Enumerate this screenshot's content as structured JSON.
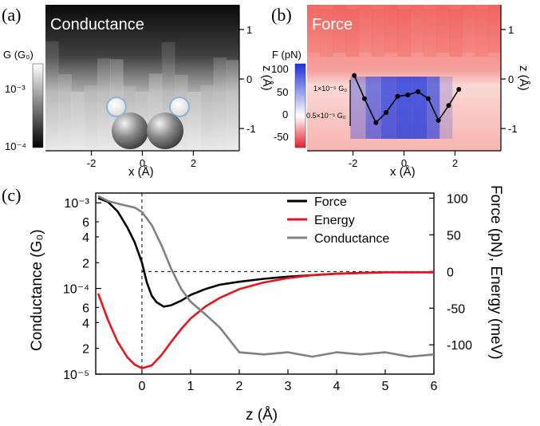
{
  "figure": {
    "panels": [
      {
        "letter": "(a)",
        "title": "Conductance",
        "colorbar_label": "G (G₀)",
        "colorbar_ticks": [
          "10⁻³",
          "10⁻⁴"
        ]
      },
      {
        "letter": "(b)",
        "title": "Force",
        "colorbar_label": "F (pN)",
        "colorbar_ticks": [
          "100",
          "50",
          "0",
          "-50"
        ],
        "inset_labels": [
          "1×10⁻⁵ G₀",
          "0.5×10⁻⁵ G₀"
        ]
      },
      {
        "letter": "(c)"
      }
    ]
  },
  "chart_data": [
    {
      "type": "heatmap",
      "panel": "a",
      "title": "Conductance",
      "xlabel": "x (Å)",
      "ylabel": "z (Å)",
      "xlim": [
        -3.8,
        3.8
      ],
      "ylim": [
        -1.45,
        1.5
      ],
      "x_ticks": [
        "-2",
        "0",
        "2"
      ],
      "y_ticks": [
        "1",
        "0",
        "-1"
      ],
      "colorbar": {
        "label": "G (G₀)",
        "scale": "log",
        "range": [
          0.0001,
          0.0015
        ],
        "colors": [
          "#000000",
          "#ffffff"
        ]
      }
    },
    {
      "type": "heatmap",
      "panel": "b",
      "title": "Force",
      "xlabel": "x (Å)",
      "ylabel": "z (Å)",
      "xlim": [
        -3.8,
        3.8
      ],
      "ylim": [
        -1.45,
        1.5
      ],
      "x_ticks": [
        "-2",
        "0",
        "2"
      ],
      "y_ticks": [
        "1",
        "0",
        "-1"
      ],
      "colorbar": {
        "label": "F (pN)",
        "range": [
          -70,
          115
        ],
        "colors": [
          "#e8202a",
          "#ffffff",
          "#1f2fd9"
        ]
      },
      "inset_line": {
        "x": [
          -1.95,
          -1.55,
          -1.1,
          -0.7,
          -0.25,
          0.15,
          0.55,
          0.95,
          1.35,
          1.75,
          2.15
        ],
        "y": [
          1.3,
          0.8,
          0.28,
          0.5,
          0.85,
          0.88,
          0.95,
          0.8,
          0.33,
          0.65,
          1.0
        ]
      }
    },
    {
      "type": "line",
      "panel": "c",
      "xlabel": "z (Å)",
      "ylabel_left": "Conductance (G₀)",
      "ylabel_right": "Force (pN), Energy (meV)",
      "xlim": [
        -0.95,
        6.0
      ],
      "ylim_left": [
        1e-05,
        0.0013
      ],
      "ylim_right": [
        -140,
        107
      ],
      "left_scale": "log",
      "x_ticks": [
        "0",
        "1",
        "2",
        "3",
        "4",
        "5",
        "6"
      ],
      "left_ticks": [
        "10⁻³",
        "6",
        "4",
        "2",
        "10⁻⁴",
        "6",
        "4",
        "2",
        "10⁻⁵"
      ],
      "right_ticks": [
        "100",
        "50",
        "0",
        "-50",
        "-100"
      ],
      "legend_position": "top-right",
      "series": [
        {
          "name": "Force",
          "color": "#000000",
          "axis": "right",
          "x": [
            -0.9,
            -0.7,
            -0.5,
            -0.3,
            -0.15,
            0,
            0.1,
            0.2,
            0.3,
            0.45,
            0.6,
            0.8,
            1.0,
            1.3,
            1.6,
            2.0,
            2.5,
            3.0,
            3.5,
            4.0,
            4.5,
            5.0,
            5.5,
            6.0
          ],
          "y": [
            100,
            95,
            82,
            60,
            40,
            12,
            -15,
            -33,
            -42,
            -48,
            -46,
            -40,
            -32,
            -24,
            -18,
            -14,
            -10,
            -7,
            -5,
            -3,
            -2,
            -1,
            -1,
            -1
          ]
        },
        {
          "name": "Energy",
          "color": "#e8141c",
          "axis": "right",
          "x": [
            -0.9,
            -0.7,
            -0.5,
            -0.3,
            -0.15,
            0,
            0.2,
            0.4,
            0.6,
            0.8,
            1.0,
            1.3,
            1.6,
            2.0,
            2.5,
            3.0,
            3.5,
            4.0,
            4.5,
            5.0,
            5.5,
            6.0
          ],
          "y": [
            -30,
            -66,
            -96,
            -117,
            -127,
            -132,
            -128,
            -114,
            -96,
            -79,
            -64,
            -48,
            -36,
            -24,
            -15,
            -9,
            -5,
            -3,
            -2,
            -1,
            -1,
            -1
          ]
        },
        {
          "name": "Conductance",
          "color": "#808080",
          "axis": "left",
          "x": [
            -0.9,
            -0.7,
            -0.5,
            -0.3,
            -0.15,
            0,
            0.2,
            0.4,
            0.6,
            0.8,
            1.0,
            1.3,
            1.6,
            2.0,
            2.5,
            3.0,
            3.5,
            4.0,
            4.5,
            5.0,
            5.5,
            6.0
          ],
          "y": [
            0.0012,
            0.00105,
            0.00098,
            0.00092,
            0.00088,
            0.00078,
            0.00055,
            0.00032,
            0.00017,
            0.0001,
            7e-05,
            5e-05,
            3.5e-05,
            1.8e-05,
            1.7e-05,
            1.8e-05,
            1.6e-05,
            1.8e-05,
            1.7e-05,
            1.8e-05,
            1.6e-05,
            1.7e-05
          ]
        }
      ],
      "annotations": [
        "dashed vertical line at z = 0",
        "dashed horizontal line at Force = 0"
      ]
    }
  ]
}
